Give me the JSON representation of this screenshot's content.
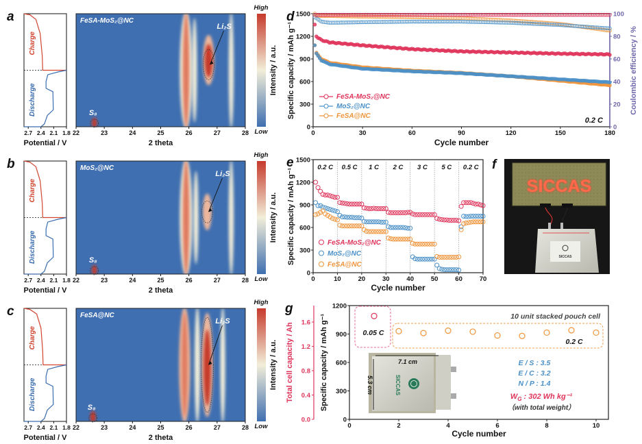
{
  "colors": {
    "red": "#e0335a",
    "blue": "#4a90c8",
    "orange": "#f0943a",
    "ce_axis": "#6f68aa",
    "heat_low": "#3f6fb0",
    "heat_mid": "#f2eed9",
    "heat_high": "#c63a2c",
    "cap_axis": "#e0335a"
  },
  "chart_data": [
    {
      "label": "a",
      "type": "heatmap",
      "title": "FeSA-MoS₂@NC",
      "xlabel": "2 theta",
      "xlim": [
        22,
        28
      ],
      "xticks": [
        "22",
        "23",
        "24",
        "25",
        "26",
        "27",
        "28"
      ],
      "colorbar": {
        "label": "Intensity / a.u.",
        "high": "High",
        "low": "Low"
      },
      "annotations": {
        "li2s": "Li₂S",
        "s8": "S₈"
      },
      "li2s_at": [
        26.7,
        0.45
      ],
      "s8_at": [
        22.65,
        0.96
      ],
      "side_plot": {
        "xlabel": "Potential / V",
        "xticks": [
          "2.7",
          "2.4",
          "2.1",
          "1.8"
        ],
        "xlim": [
          2.8,
          1.8
        ],
        "charge_label": "Charge",
        "discharge_label": "Discharge",
        "charge": [
          [
            2.8,
            0
          ],
          [
            2.66,
            0.02
          ],
          [
            2.52,
            0.1
          ],
          [
            2.42,
            0.35
          ],
          [
            2.37,
            0.75
          ],
          [
            2.36,
            1
          ],
          [
            1.8,
            1
          ]
        ],
        "discharge": [
          [
            1.8,
            0
          ],
          [
            2.0,
            0.03
          ],
          [
            2.24,
            0.08
          ],
          [
            2.28,
            0.2
          ],
          [
            2.28,
            0.32
          ],
          [
            2.12,
            0.38
          ],
          [
            2.11,
            0.7
          ],
          [
            2.25,
            0.8
          ],
          [
            2.32,
            0.95
          ],
          [
            2.4,
            1
          ],
          [
            2.8,
            1
          ]
        ]
      },
      "features": [
        {
          "theta": 25.9,
          "w": 0.35,
          "y": [
            0,
            1
          ],
          "i": 0.35
        },
        {
          "theta": 25.9,
          "w": 0.14,
          "y": [
            0,
            1
          ],
          "i": 0.8
        },
        {
          "theta": 26.2,
          "w": 0.08,
          "y": [
            0.05,
            0.95
          ],
          "i": 0.3
        },
        {
          "theta": 27.5,
          "w": 0.08,
          "y": [
            0,
            1
          ],
          "i": 0.3
        },
        {
          "theta": 26.7,
          "w": 0.3,
          "y": [
            0.2,
            0.62
          ],
          "i": 0.45
        },
        {
          "theta": 26.7,
          "w": 0.18,
          "y": [
            0.28,
            0.55
          ],
          "i": 1
        },
        {
          "theta": 22.65,
          "w": 0.08,
          "y": [
            0.93,
            1
          ],
          "i": 1
        }
      ]
    },
    {
      "label": "b",
      "type": "heatmap",
      "title": "MoS₂@NC",
      "xlabel": "2 theta",
      "xlim": [
        22,
        28
      ],
      "xticks": [
        "22",
        "23",
        "24",
        "25",
        "26",
        "27",
        "28"
      ],
      "colorbar": {
        "label": "Intensity / a.u.",
        "high": "High",
        "low": "Low"
      },
      "annotations": {
        "li2s": "Li₂S",
        "s8": "S₈"
      },
      "li2s_at": [
        26.65,
        0.45
      ],
      "s8_at": [
        22.65,
        0.96
      ],
      "side_plot": {
        "xlabel": "Potential / V",
        "xticks": [
          "2.7",
          "2.4",
          "2.1",
          "1.8"
        ],
        "xlim": [
          2.8,
          1.8
        ],
        "charge_label": "Charge",
        "discharge_label": "Discharge",
        "charge": [
          [
            2.8,
            0
          ],
          [
            2.66,
            0.02
          ],
          [
            2.52,
            0.1
          ],
          [
            2.42,
            0.35
          ],
          [
            2.37,
            0.75
          ],
          [
            2.36,
            1
          ],
          [
            1.8,
            1
          ]
        ],
        "discharge": [
          [
            1.8,
            0
          ],
          [
            2.0,
            0.03
          ],
          [
            2.24,
            0.08
          ],
          [
            2.28,
            0.2
          ],
          [
            2.28,
            0.32
          ],
          [
            2.12,
            0.38
          ],
          [
            2.11,
            0.7
          ],
          [
            2.25,
            0.8
          ],
          [
            2.32,
            0.95
          ],
          [
            2.4,
            1
          ],
          [
            2.8,
            1
          ]
        ]
      },
      "features": [
        {
          "theta": 25.9,
          "w": 0.35,
          "y": [
            0,
            1
          ],
          "i": 0.35
        },
        {
          "theta": 25.9,
          "w": 0.14,
          "y": [
            0,
            1
          ],
          "i": 0.75
        },
        {
          "theta": 26.25,
          "w": 0.08,
          "y": [
            0.1,
            0.9
          ],
          "i": 0.3
        },
        {
          "theta": 27.5,
          "w": 0.08,
          "y": [
            0,
            1
          ],
          "i": 0.3
        },
        {
          "theta": 26.65,
          "w": 0.22,
          "y": [
            0.3,
            0.6
          ],
          "i": 0.5
        },
        {
          "theta": 22.65,
          "w": 0.08,
          "y": [
            0.93,
            1
          ],
          "i": 1
        }
      ]
    },
    {
      "label": "c",
      "type": "heatmap",
      "title": "FeSA@NC",
      "xlabel": "2 theta",
      "xlim": [
        22,
        28
      ],
      "xticks": [
        "22",
        "23",
        "24",
        "25",
        "26",
        "27",
        "28"
      ],
      "colorbar": {
        "label": "Intensity / a.u.",
        "high": "High",
        "low": "Low"
      },
      "annotations": {
        "li2s": "Li₂S",
        "s8": "S₈"
      },
      "li2s_at": [
        26.65,
        0.5
      ],
      "s8_at": [
        22.6,
        0.96
      ],
      "side_plot": {
        "xlabel": "Potential / V",
        "xticks": [
          "2.7",
          "2.4",
          "2.1",
          "1.8"
        ],
        "xlim": [
          2.8,
          1.8
        ],
        "charge_label": "Charge",
        "discharge_label": "Discharge",
        "charge": [
          [
            2.8,
            0
          ],
          [
            2.66,
            0.02
          ],
          [
            2.5,
            0.1
          ],
          [
            2.4,
            0.35
          ],
          [
            2.36,
            0.75
          ],
          [
            2.35,
            1
          ],
          [
            1.8,
            1
          ]
        ],
        "discharge": [
          [
            1.8,
            0
          ],
          [
            2.0,
            0.03
          ],
          [
            2.24,
            0.08
          ],
          [
            2.28,
            0.2
          ],
          [
            2.28,
            0.32
          ],
          [
            2.12,
            0.38
          ],
          [
            2.11,
            0.7
          ],
          [
            2.25,
            0.8
          ],
          [
            2.32,
            0.95
          ],
          [
            2.4,
            1
          ],
          [
            2.8,
            1
          ]
        ]
      },
      "features": [
        {
          "theta": 25.85,
          "w": 0.3,
          "y": [
            0,
            1
          ],
          "i": 0.4
        },
        {
          "theta": 25.85,
          "w": 0.1,
          "y": [
            0.05,
            0.95
          ],
          "i": 0.6
        },
        {
          "theta": 26.3,
          "w": 0.1,
          "y": [
            0,
            1
          ],
          "i": 0.3
        },
        {
          "theta": 27.2,
          "w": 0.08,
          "y": [
            0,
            1
          ],
          "i": 0.3
        },
        {
          "theta": 26.65,
          "w": 0.3,
          "y": [
            0.05,
            0.95
          ],
          "i": 0.45
        },
        {
          "theta": 26.65,
          "w": 0.16,
          "y": [
            0.2,
            0.85
          ],
          "i": 1
        },
        {
          "theta": 22.6,
          "w": 0.1,
          "y": [
            0.92,
            1
          ],
          "i": 1
        }
      ]
    },
    {
      "label": "d",
      "type": "line",
      "xlabel": "Cycle number",
      "ylabel": "Specific capacity / mAh g⁻¹",
      "ylabel_right": "Coulombic efficiency / %",
      "xlim": [
        0,
        180
      ],
      "ylim": [
        0,
        1500
      ],
      "ylim_right": [
        0,
        100
      ],
      "xticks": [
        0,
        30,
        60,
        90,
        120,
        150,
        180
      ],
      "yticks": [
        0,
        300,
        600,
        900,
        1200,
        1500
      ],
      "yticks_right": [
        0,
        20,
        40,
        60,
        80,
        100
      ],
      "annotation": "0.2 C",
      "x": [
        1,
        2,
        5,
        10,
        30,
        60,
        90,
        120,
        150,
        180
      ],
      "series": [
        {
          "name": "FeSA-MoS₂@NC",
          "color": "red",
          "capacity": [
            1350,
            1200,
            1150,
            1120,
            1080,
            1030,
            1000,
            985,
            970,
            960
          ],
          "ce": [
            99,
            99,
            99,
            99,
            99,
            99,
            99,
            99,
            99,
            99
          ]
        },
        {
          "name": "MoS₂@NC",
          "color": "blue",
          "capacity": [
            1080,
            970,
            880,
            830,
            770,
            735,
            710,
            670,
            630,
            590
          ],
          "ce": [
            97,
            96,
            93,
            92,
            92.5,
            93,
            93,
            92,
            90,
            87
          ]
        },
        {
          "name": "FeSA@NC",
          "color": "orange",
          "capacity": [
            1080,
            980,
            900,
            850,
            790,
            745,
            715,
            670,
            610,
            550
          ],
          "ce": [
            100,
            98,
            98,
            98,
            97.5,
            97,
            96,
            94,
            91,
            85
          ]
        }
      ]
    },
    {
      "label": "e",
      "type": "scatter",
      "xlabel": "Cycle number",
      "ylabel": "Specific capacity / mAh g⁻¹",
      "xlim": [
        0,
        70
      ],
      "ylim": [
        0,
        1500
      ],
      "xticks": [
        0,
        10,
        20,
        30,
        40,
        50,
        60,
        70
      ],
      "yticks": [
        0,
        300,
        600,
        900,
        1200,
        1500
      ],
      "rates": [
        "0.2 C",
        "0.5 C",
        "1 C",
        "2 C",
        "3 C",
        "5 C",
        "0.2 C"
      ],
      "series": [
        {
          "name": "FeSA-MoS₂@NC",
          "color": "red",
          "values": [
            1200,
            1130,
            1080,
            1040,
            1030,
            1030,
            1020,
            1010,
            1000,
            1000,
            930,
            925,
            920,
            915,
            910,
            910,
            910,
            910,
            910,
            910,
            860,
            855,
            850,
            850,
            855,
            850,
            850,
            850,
            850,
            850,
            800,
            795,
            795,
            795,
            795,
            795,
            795,
            795,
            800,
            800,
            780,
            770,
            770,
            770,
            770,
            770,
            770,
            770,
            770,
            770,
            720,
            710,
            705,
            700,
            700,
            695,
            695,
            695,
            695,
            690,
            880,
            930,
            930,
            930,
            930,
            920,
            910,
            910,
            900,
            890
          ]
        },
        {
          "name": "MoS₂@NC",
          "color": "blue",
          "values": [
            930,
            890,
            890,
            870,
            860,
            850,
            840,
            830,
            820,
            810,
            760,
            740,
            740,
            735,
            735,
            735,
            730,
            730,
            730,
            725,
            680,
            675,
            675,
            675,
            675,
            675,
            675,
            670,
            670,
            670,
            610,
            600,
            600,
            600,
            600,
            600,
            600,
            595,
            590,
            590,
            210,
            185,
            180,
            180,
            180,
            180,
            180,
            180,
            180,
            180,
            100,
            55,
            45,
            40,
            40,
            40,
            40,
            40,
            40,
            35,
            610,
            750,
            745,
            745,
            750,
            750,
            750,
            750,
            750,
            750
          ]
        },
        {
          "name": "FeSA@NC",
          "color": "orange",
          "values": [
            770,
            780,
            800,
            820,
            780,
            760,
            740,
            720,
            710,
            700,
            630,
            620,
            620,
            620,
            620,
            620,
            620,
            620,
            620,
            620,
            570,
            550,
            545,
            545,
            545,
            545,
            545,
            545,
            545,
            545,
            460,
            450,
            445,
            445,
            445,
            445,
            445,
            445,
            445,
            445,
            390,
            380,
            380,
            380,
            380,
            380,
            380,
            380,
            380,
            380,
            215,
            205,
            205,
            205,
            205,
            205,
            205,
            205,
            205,
            210,
            570,
            650,
            660,
            665,
            670,
            675,
            675,
            675,
            675,
            675
          ]
        }
      ]
    },
    {
      "label": "g",
      "type": "scatter",
      "xlabel": "Cycle number",
      "ylabel": "Specific capacity / mAh g⁻¹",
      "ylabel_left": "Total cell capacity / Ah",
      "xlim": [
        0,
        10.5
      ],
      "ylim": [
        0,
        1200
      ],
      "ylim_left": [
        0,
        1.87
      ],
      "xticks": [
        0,
        2,
        4,
        6,
        8,
        10
      ],
      "yticks": [
        0,
        300,
        600,
        900,
        1200
      ],
      "yticks_left": [
        "0.0",
        "0.4",
        "0.8",
        "1.2",
        "1.6"
      ],
      "title": "10 unit stacked pouch cell",
      "x": [
        1,
        2,
        3,
        4,
        5,
        6,
        7,
        8,
        9,
        10
      ],
      "values": [
        1090,
        930,
        910,
        935,
        925,
        885,
        880,
        915,
        940,
        915
      ],
      "rate_labels": {
        "low": "0.05 C",
        "high": "0.2 C"
      },
      "params": [
        "E / S : 3.5",
        "E / C : 3.2",
        "N / P : 1.4"
      ],
      "wg": {
        "symbol": "W",
        "sub": "G",
        "text": " : 302 Wh kg⁻¹",
        "note": "（with total weight）"
      },
      "photo": {
        "width_label": "7.1 cm",
        "height_label": "5.3 cm",
        "logo": "SICCAS"
      }
    }
  ],
  "photo_f": {
    "label": "f",
    "led_text": "SICCAS",
    "cell_logo": "SICCAS"
  }
}
